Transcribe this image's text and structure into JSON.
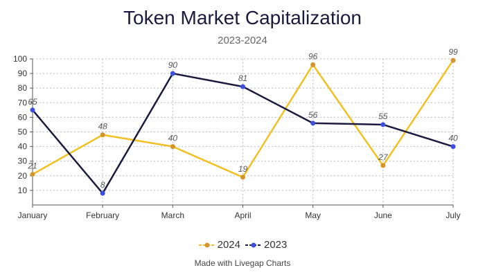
{
  "chart_data": {
    "type": "line",
    "title": "Token Market Capitalization",
    "subtitle": "2023-2024",
    "categories": [
      "January",
      "February",
      "March",
      "April",
      "May",
      "June",
      "July"
    ],
    "series": [
      {
        "name": "2024",
        "values": [
          21,
          48,
          40,
          19,
          96,
          27,
          99
        ],
        "color": "#f0c020",
        "marker_color": "#d4942a"
      },
      {
        "name": "2023",
        "values": [
          65,
          8,
          90,
          81,
          56,
          55,
          40
        ],
        "color": "#1b1a3f",
        "marker_color": "#3d4fe0"
      }
    ],
    "ylim": [
      0,
      100
    ],
    "yticks": [
      10,
      20,
      30,
      40,
      50,
      60,
      70,
      80,
      90,
      100
    ],
    "grid": true,
    "legend_position": "bottom",
    "xlabel": "",
    "ylabel": ""
  },
  "footer": "Made with Livegap Charts"
}
